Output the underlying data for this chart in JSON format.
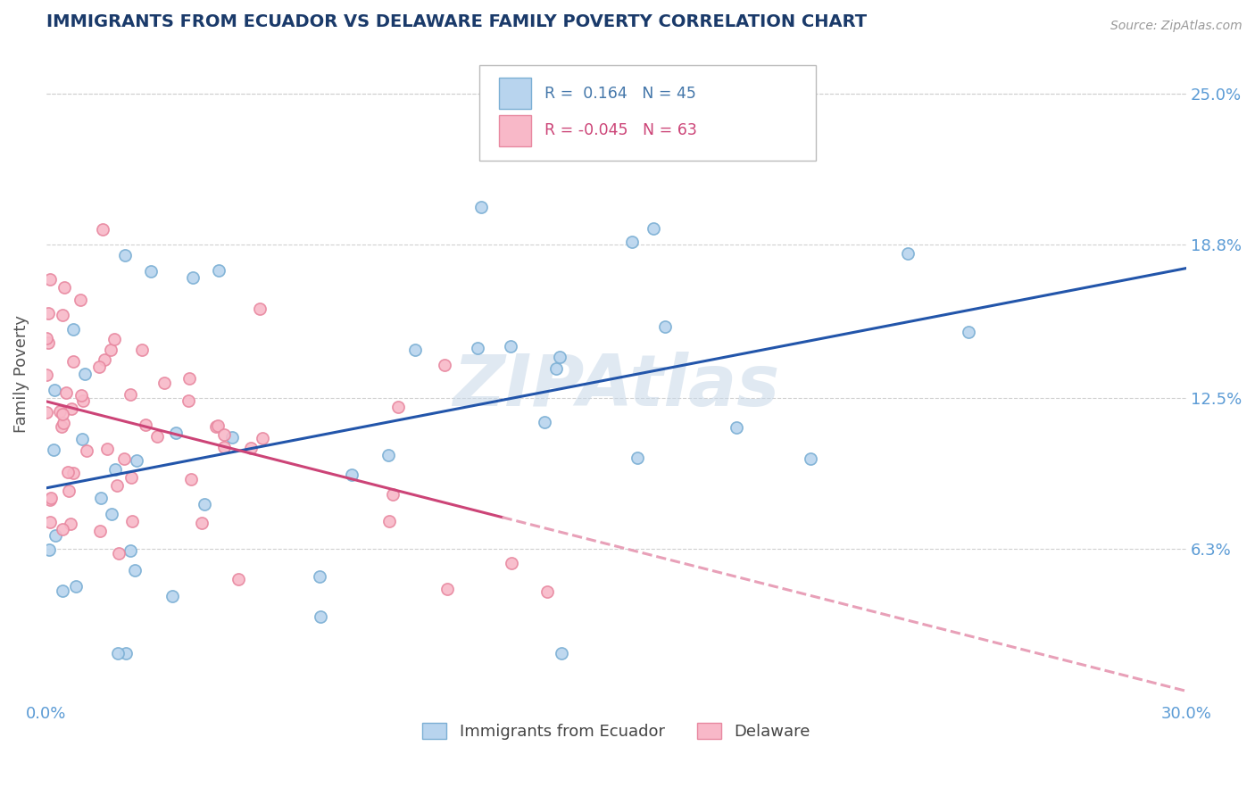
{
  "title": "IMMIGRANTS FROM ECUADOR VS DELAWARE FAMILY POVERTY CORRELATION CHART",
  "source": "Source: ZipAtlas.com",
  "ylabel": "Family Poverty",
  "xlim": [
    0.0,
    30.0
  ],
  "ylim": [
    0.0,
    27.0
  ],
  "yticks": [
    6.3,
    12.5,
    18.8,
    25.0
  ],
  "ytick_labels": [
    "6.3%",
    "12.5%",
    "18.8%",
    "25.0%"
  ],
  "xtick_labels": [
    "0.0%",
    "30.0%"
  ],
  "grid_color": "#d0d0d0",
  "background_color": "#ffffff",
  "series1": {
    "label": "Immigrants from Ecuador",
    "R": 0.164,
    "N": 45,
    "marker_fill": "#b8d4ee",
    "marker_edge": "#7bafd4",
    "trend_color": "#2255aa"
  },
  "series2": {
    "label": "Delaware",
    "R": -0.045,
    "N": 63,
    "marker_fill": "#f8b8c8",
    "marker_edge": "#e888a0",
    "trend_solid_color": "#cc4477",
    "trend_dash_color": "#e8a0b8"
  },
  "legend_R1": " 0.164",
  "legend_R2": "-0.045",
  "legend_N1": "45",
  "legend_N2": "63",
  "watermark": "ZIPAtlas",
  "title_color": "#1a3a6a",
  "axis_label_color": "#555555",
  "tick_label_color": "#5b9bd5",
  "right_tick_color": "#5b9bd5"
}
